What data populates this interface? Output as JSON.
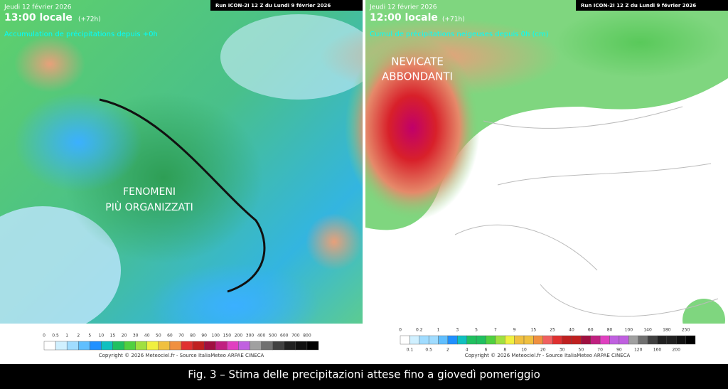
{
  "left_map": {
    "run": "Run ICON-2I 12 Z du Lundi 9 février 2026",
    "date": "Jeudi 12 février 2026",
    "time": "13:00 locale",
    "lead": "(+72h)",
    "subtitle": "Accumulation de précipitations depuis +0h",
    "annotation": [
      "FENOMENI",
      "PIÙ ORGANIZZATI"
    ],
    "scale_labels": [
      "0",
      "0.5",
      "1",
      "2",
      "5",
      "10",
      "15",
      "20",
      "30",
      "40",
      "50",
      "60",
      "70",
      "80",
      "90",
      "100",
      "150",
      "200",
      "300",
      "400",
      "500",
      "600",
      "700",
      "800"
    ],
    "copyright": "Copyright © 2026 Meteociel.fr - Source ItaliaMeteo ARPAE CINECA"
  },
  "right_map": {
    "run": "Run ICON-2I 12 Z du Lundi 9 février 2026",
    "date": "Jeudi 12 février 2026",
    "time": "12:00 locale",
    "lead": "(+71h)",
    "subtitle": "Cumul de précipitations neigeuses depuis 0h (cm)",
    "annotation": [
      "NEVICATE",
      "ABBONDANTI"
    ],
    "scale_labels_top": [
      "0",
      "0.2",
      "1",
      "3",
      "5",
      "7",
      "9",
      "15",
      "25",
      "40",
      "60",
      "80",
      "100",
      "140",
      "180",
      "250"
    ],
    "scale_labels_bottom": [
      "0.1",
      "0.5",
      "2",
      "4",
      "6",
      "8",
      "10",
      "20",
      "30",
      "50",
      "70",
      "90",
      "120",
      "160",
      "200"
    ],
    "copyright": "Copyright © 2026 Meteociel.fr - Source ItaliaMeteo ARPAE CINECA"
  },
  "caption": "Fig. 3 – Stima delle precipitazioni attese fino a giovedì pomeriggio"
}
